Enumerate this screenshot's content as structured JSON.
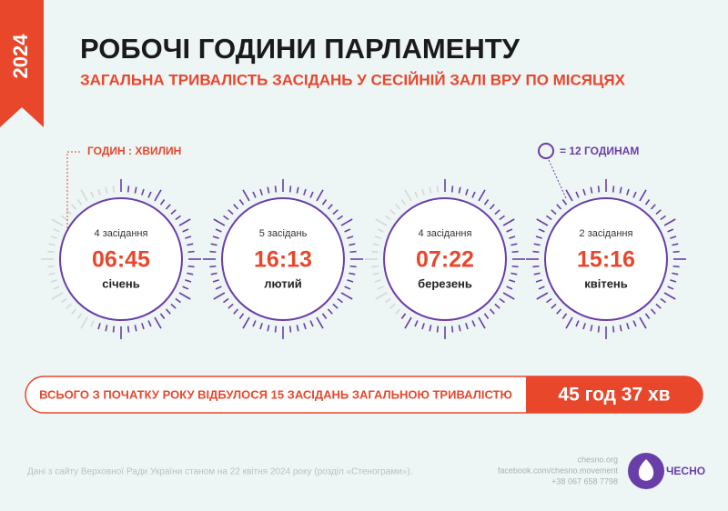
{
  "header": {
    "year": "2024",
    "title": "РОБОЧІ ГОДИНИ ПАРЛАМЕНТУ",
    "subtitle": "ЗАГАЛЬНА ТРИВАЛІСТЬ ЗАСІДАНЬ У СЕСІЙНІЙ ЗАЛІ ВРУ ПО МІСЯЦЯХ"
  },
  "legend": {
    "time_format": "ГОДИН : ХВИЛИН",
    "circle": "= 12 ГОДИНАМ"
  },
  "months": [
    {
      "sessions": "4 засідання",
      "time": "06:45",
      "month": "січень"
    },
    {
      "sessions": "5 засідань",
      "time": "16:13",
      "month": "лютий"
    },
    {
      "sessions": "4 засідання",
      "time": "07:22",
      "month": "березень"
    },
    {
      "sessions": "2 засідання",
      "time": "15:16",
      "month": "квітень"
    }
  ],
  "summary": {
    "text": "ВСЬОГО З ПОЧАТКУ РОКУ ВІДБУЛОСЯ 15 ЗАСІДАНЬ ЗАГАЛЬНОЮ ТРИВАЛІСТЮ",
    "total": "45 год 37 хв"
  },
  "footer": {
    "source": "Дані з сайту Верховної Ради України станом на 22 квітня 2024 року (розділ «Стенограми»).",
    "contacts": [
      "chesno.org",
      "facebook.com/chesno.movement",
      "+38 067 658 7798"
    ],
    "logo": "ЧЕСНО"
  }
}
